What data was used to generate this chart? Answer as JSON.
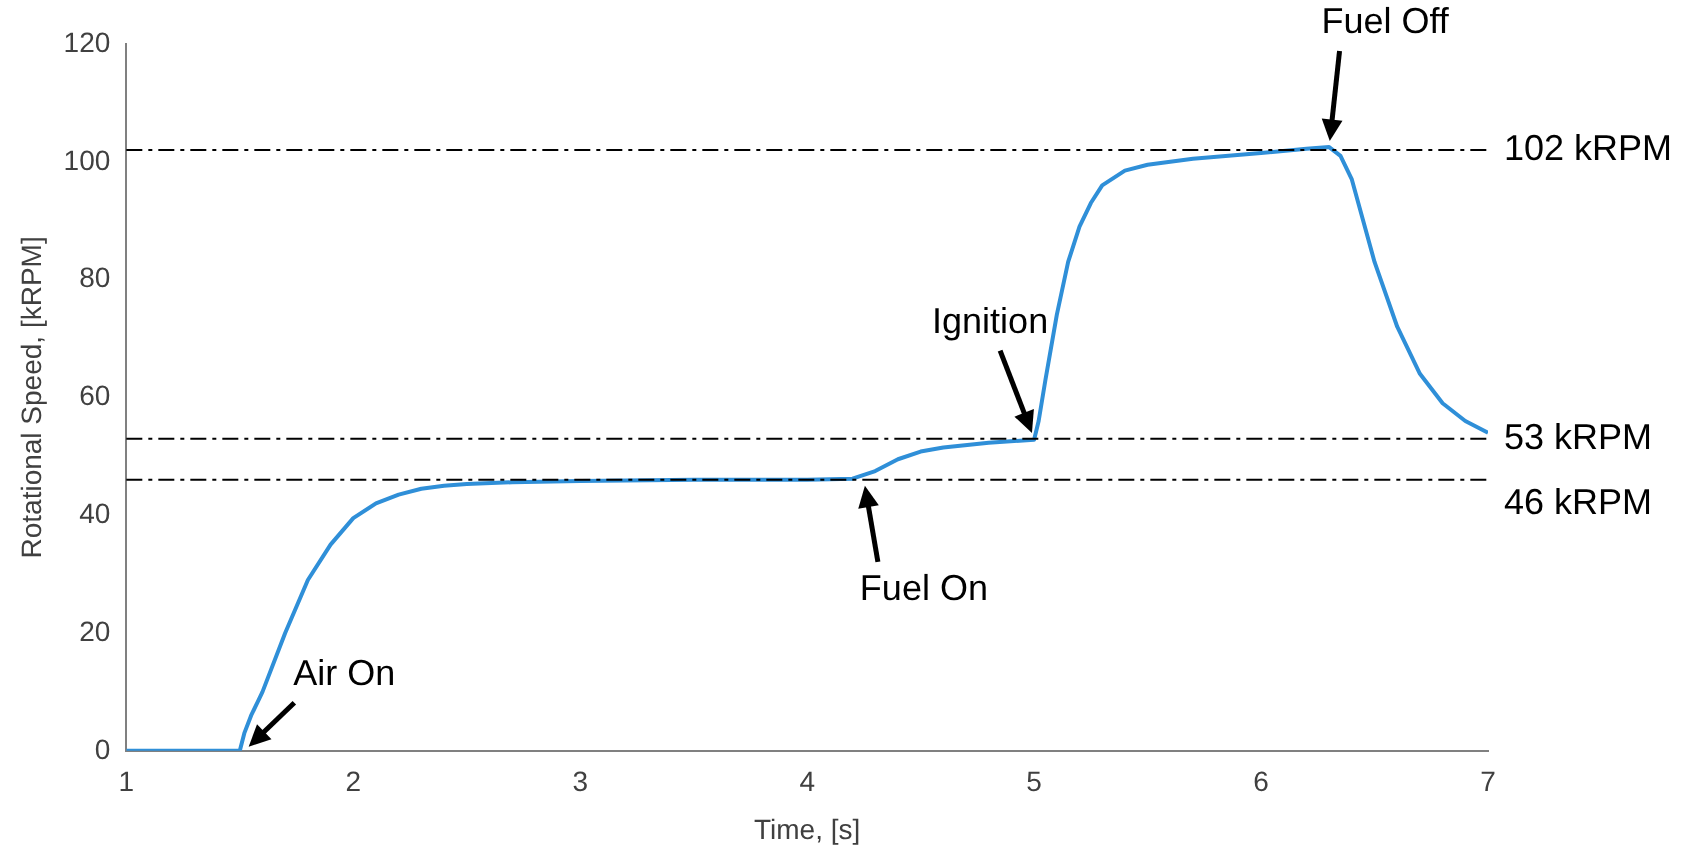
{
  "chart_data": {
    "type": "line",
    "xlabel": "Time, [s]",
    "ylabel": "Rotational Speed, [kRPM]",
    "xlim": [
      1,
      7
    ],
    "ylim": [
      0,
      120
    ],
    "xticks": [
      1,
      2,
      3,
      4,
      5,
      6,
      7
    ],
    "yticks": [
      0,
      20,
      40,
      60,
      80,
      100,
      120
    ],
    "grid": false,
    "legend": false,
    "marker": "none",
    "line_style": "solid",
    "series": [
      {
        "color": "#2f8fd8",
        "x": [
          1,
          1.2,
          1.4,
          1.5,
          1.52,
          1.55,
          1.6,
          1.7,
          1.8,
          1.9,
          2,
          2.1,
          2.2,
          2.3,
          2.4,
          2.5,
          2.7,
          3,
          3.5,
          4,
          4.2,
          4.3,
          4.4,
          4.5,
          4.6,
          4.8,
          5,
          5.02,
          5.05,
          5.1,
          5.15,
          5.2,
          5.25,
          5.3,
          5.4,
          5.5,
          5.7,
          6,
          6.2,
          6.3,
          6.35,
          6.4,
          6.45,
          6.5,
          6.6,
          6.7,
          6.8,
          6.9,
          7
        ],
        "values": [
          0,
          0,
          0,
          0,
          3,
          6,
          10,
          20,
          29,
          35,
          39.5,
          42,
          43.5,
          44.5,
          45,
          45.3,
          45.6,
          45.8,
          46,
          46,
          46.2,
          47.5,
          49.5,
          50.8,
          51.5,
          52.3,
          52.8,
          56,
          63,
          74,
          83,
          89,
          93,
          96,
          98.5,
          99.5,
          100.5,
          101.5,
          102.2,
          102.5,
          101,
          97,
          90,
          83,
          72,
          64,
          59,
          56,
          54
        ]
      }
    ],
    "ref_lines": [
      {
        "axis": "y",
        "value": 102,
        "label": "102 kRPM",
        "color": "#000000",
        "line_style": "dashdot"
      },
      {
        "axis": "y",
        "value": 53,
        "label": "53 kRPM",
        "color": "#000000",
        "line_style": "dashdot"
      },
      {
        "axis": "y",
        "value": 46,
        "label": "46 kRPM",
        "color": "#000000",
        "line_style": "dashdot"
      }
    ],
    "annotations": [
      {
        "text": "Air On",
        "x": 1.52,
        "y": 0
      },
      {
        "text": "Fuel On",
        "x": 4.25,
        "y": 46
      },
      {
        "text": "Ignition",
        "x": 5,
        "y": 53
      },
      {
        "text": "Fuel Off",
        "x": 6.3,
        "y": 102.5
      }
    ]
  }
}
